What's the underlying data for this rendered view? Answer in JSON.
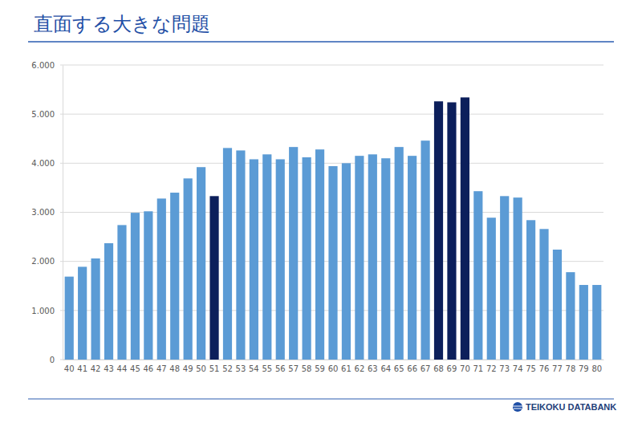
{
  "chart_data": {
    "type": "bar",
    "title": "直面する大きな問題",
    "categories": [
      "40",
      "41",
      "42",
      "43",
      "44",
      "45",
      "46",
      "47",
      "48",
      "49",
      "50",
      "51",
      "52",
      "53",
      "54",
      "55",
      "56",
      "57",
      "58",
      "59",
      "60",
      "61",
      "62",
      "63",
      "64",
      "65",
      "66",
      "67",
      "68",
      "69",
      "70",
      "71",
      "72",
      "73",
      "74",
      "75",
      "76",
      "77",
      "78",
      "79",
      "80"
    ],
    "values": [
      1690,
      1890,
      2060,
      2370,
      2740,
      2990,
      3020,
      3280,
      3400,
      3690,
      3920,
      3330,
      4310,
      4260,
      4080,
      4180,
      4080,
      4330,
      4120,
      4280,
      3940,
      4000,
      4150,
      4180,
      4100,
      4330,
      4150,
      4460,
      5260,
      5240,
      5340,
      3430,
      2890,
      3330,
      3300,
      2840,
      2660,
      2240,
      1780,
      1520,
      1520
    ],
    "colors": [
      "#5b9bd5",
      "#5b9bd5",
      "#5b9bd5",
      "#5b9bd5",
      "#5b9bd5",
      "#5b9bd5",
      "#5b9bd5",
      "#5b9bd5",
      "#5b9bd5",
      "#5b9bd5",
      "#5b9bd5",
      "#0c1f5b",
      "#5b9bd5",
      "#5b9bd5",
      "#5b9bd5",
      "#5b9bd5",
      "#5b9bd5",
      "#5b9bd5",
      "#5b9bd5",
      "#5b9bd5",
      "#5b9bd5",
      "#5b9bd5",
      "#5b9bd5",
      "#5b9bd5",
      "#5b9bd5",
      "#5b9bd5",
      "#5b9bd5",
      "#5b9bd5",
      "#0c1f5b",
      "#0c1f5b",
      "#0c1f5b",
      "#5b9bd5",
      "#5b9bd5",
      "#5b9bd5",
      "#5b9bd5",
      "#5b9bd5",
      "#5b9bd5",
      "#5b9bd5",
      "#5b9bd5",
      "#5b9bd5",
      "#5b9bd5"
    ],
    "ylim": [
      0,
      6000
    ],
    "yticks": [
      0,
      {
        "value": 1000,
        "label": "1.000"
      },
      {
        "value": 2000,
        "label": "2.000"
      },
      {
        "value": 3000,
        "label": "3.000"
      },
      {
        "value": 4000,
        "label": "4.000"
      },
      {
        "value": 5000,
        "label": "5.000"
      },
      {
        "value": 6000,
        "label": "6.000"
      }
    ],
    "grid": true
  },
  "footer": {
    "logo": "TEIKOKU DATABANK"
  }
}
